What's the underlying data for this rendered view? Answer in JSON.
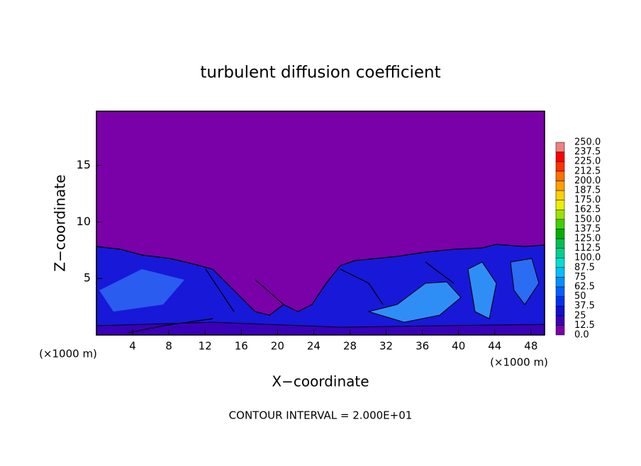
{
  "chart_data": {
    "type": "contour",
    "title": "turbulent diffusion coefficient",
    "x_label": "X−coordinate",
    "y_label": "Z−coordinate",
    "x_unit": "(×1000 m)",
    "y_unit": "(×1000 m)",
    "note": "CONTOUR INTERVAL = 2.000E+01",
    "xlim": [
      0,
      49.5
    ],
    "ylim": [
      0,
      19.8
    ],
    "xticks": [
      4,
      8,
      12,
      16,
      20,
      24,
      28,
      32,
      36,
      40,
      44,
      48
    ],
    "yticks": [
      5,
      10,
      15
    ],
    "colorbar": {
      "levels": [
        {
          "value": 0,
          "label": "0.0"
        },
        12.5,
        25,
        37.5,
        50,
        62.5,
        75,
        87.5,
        {
          "value": 100,
          "label": "100.0"
        },
        112.5,
        {
          "value": 125,
          "label": "125.0"
        },
        137.5,
        {
          "value": 150,
          "label": "150.0"
        },
        162.5,
        {
          "value": 175,
          "label": "175.0"
        },
        187.5,
        {
          "value": 200,
          "label": "200.0"
        },
        212.5,
        {
          "value": 225,
          "label": "225.0"
        },
        237.5,
        {
          "value": 250,
          "label": "250.0"
        }
      ],
      "colors": [
        "#7a00a8",
        "#3a00b8",
        "#1010d0",
        "#0030f0",
        "#0060ff",
        "#0090ff",
        "#00c0ff",
        "#00e0d0",
        "#00d090",
        "#00c050",
        "#00b000",
        "#40d000",
        "#a0e000",
        "#e8f000",
        "#ffd000",
        "#ffa000",
        "#ff7000",
        "#ff3000",
        "#ff0000",
        "#f08080"
      ]
    }
  }
}
